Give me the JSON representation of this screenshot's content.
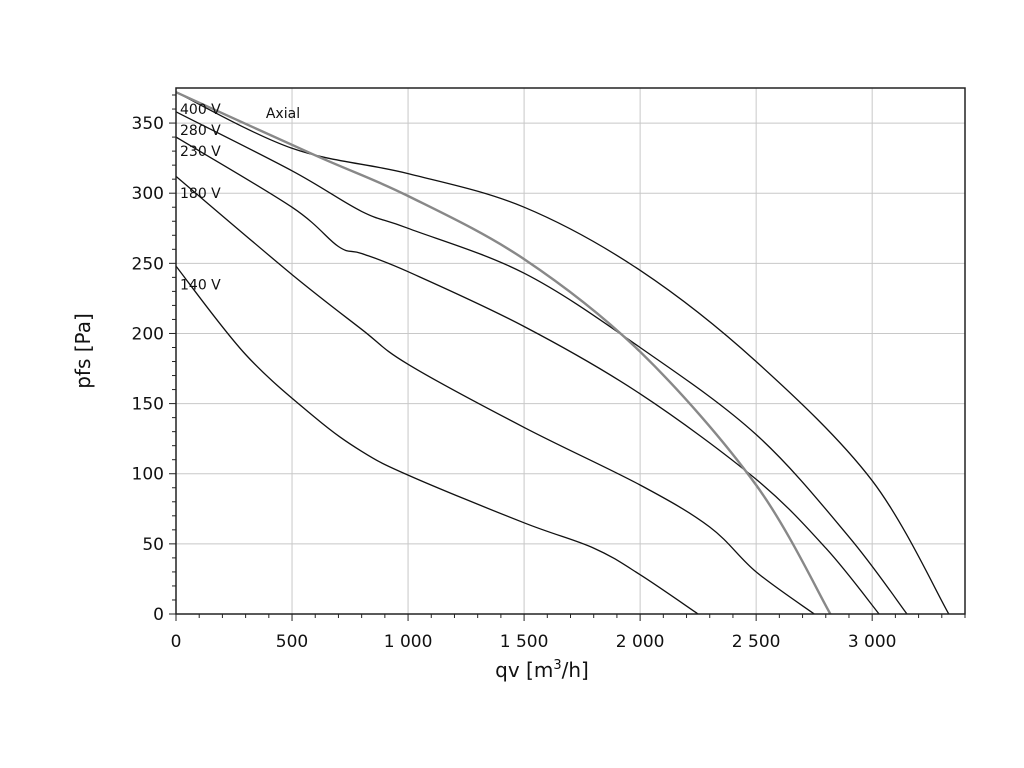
{
  "chart_data": {
    "type": "line",
    "xlabel": "qv [m³/h]",
    "ylabel": "pfs [Pa]",
    "xlim": [
      0,
      3400
    ],
    "ylim": [
      0,
      375
    ],
    "x_ticks": [
      0,
      500,
      1000,
      1500,
      2000,
      2500,
      3000
    ],
    "x_tick_labels": [
      "0",
      "500",
      "1 000",
      "1 500",
      "2 000",
      "2 500",
      "3 000"
    ],
    "y_ticks": [
      0,
      50,
      100,
      150,
      200,
      250,
      300,
      350
    ],
    "y_tick_labels": [
      "0",
      "50",
      "100",
      "150",
      "200",
      "250",
      "300",
      "350"
    ],
    "grid": true,
    "series": [
      {
        "name": "400 V",
        "color": "#111111",
        "points": [
          [
            0,
            372
          ],
          [
            500,
            332
          ],
          [
            1000,
            314
          ],
          [
            1500,
            290
          ],
          [
            2000,
            245
          ],
          [
            2500,
            180
          ],
          [
            3000,
            95
          ],
          [
            3330,
            0
          ]
        ]
      },
      {
        "name": "280 V",
        "color": "#111111",
        "points": [
          [
            0,
            358
          ],
          [
            500,
            316
          ],
          [
            800,
            287
          ],
          [
            1000,
            275
          ],
          [
            1500,
            243
          ],
          [
            2000,
            190
          ],
          [
            2500,
            128
          ],
          [
            2900,
            55
          ],
          [
            3150,
            0
          ]
        ]
      },
      {
        "name": "230 V",
        "color": "#111111",
        "points": [
          [
            0,
            340
          ],
          [
            500,
            290
          ],
          [
            700,
            262
          ],
          [
            800,
            257
          ],
          [
            1000,
            244
          ],
          [
            1500,
            205
          ],
          [
            2000,
            157
          ],
          [
            2500,
            96
          ],
          [
            2800,
            47
          ],
          [
            3030,
            0
          ]
        ]
      },
      {
        "name": "180 V",
        "color": "#111111",
        "points": [
          [
            0,
            312
          ],
          [
            500,
            242
          ],
          [
            800,
            203
          ],
          [
            1000,
            178
          ],
          [
            1500,
            133
          ],
          [
            2000,
            92
          ],
          [
            2300,
            62
          ],
          [
            2500,
            30
          ],
          [
            2750,
            0
          ]
        ]
      },
      {
        "name": "140 V",
        "color": "#111111",
        "points": [
          [
            0,
            248
          ],
          [
            300,
            185
          ],
          [
            600,
            140
          ],
          [
            800,
            116
          ],
          [
            1000,
            99
          ],
          [
            1500,
            65
          ],
          [
            1800,
            47
          ],
          [
            2000,
            28
          ],
          [
            2250,
            0
          ]
        ]
      },
      {
        "name": "Axial",
        "color": "#888888",
        "points": [
          [
            0,
            372
          ],
          [
            600,
            327
          ],
          [
            1000,
            298
          ],
          [
            1500,
            253
          ],
          [
            2000,
            187
          ],
          [
            2500,
            92
          ],
          [
            2820,
            0
          ]
        ]
      }
    ],
    "curve_labels": [
      {
        "text": "400 V",
        "x": 0,
        "y": 360,
        "color": "#111111"
      },
      {
        "text": "280 V",
        "x": 0,
        "y": 345,
        "color": "#111111"
      },
      {
        "text": "230 V",
        "x": 0,
        "y": 330,
        "color": "#111111"
      },
      {
        "text": "180 V",
        "x": 0,
        "y": 300,
        "color": "#111111"
      },
      {
        "text": "140 V",
        "x": 0,
        "y": 235,
        "color": "#111111"
      },
      {
        "text": "Axial",
        "x": 370,
        "y": 357,
        "color": "#888888"
      }
    ]
  }
}
